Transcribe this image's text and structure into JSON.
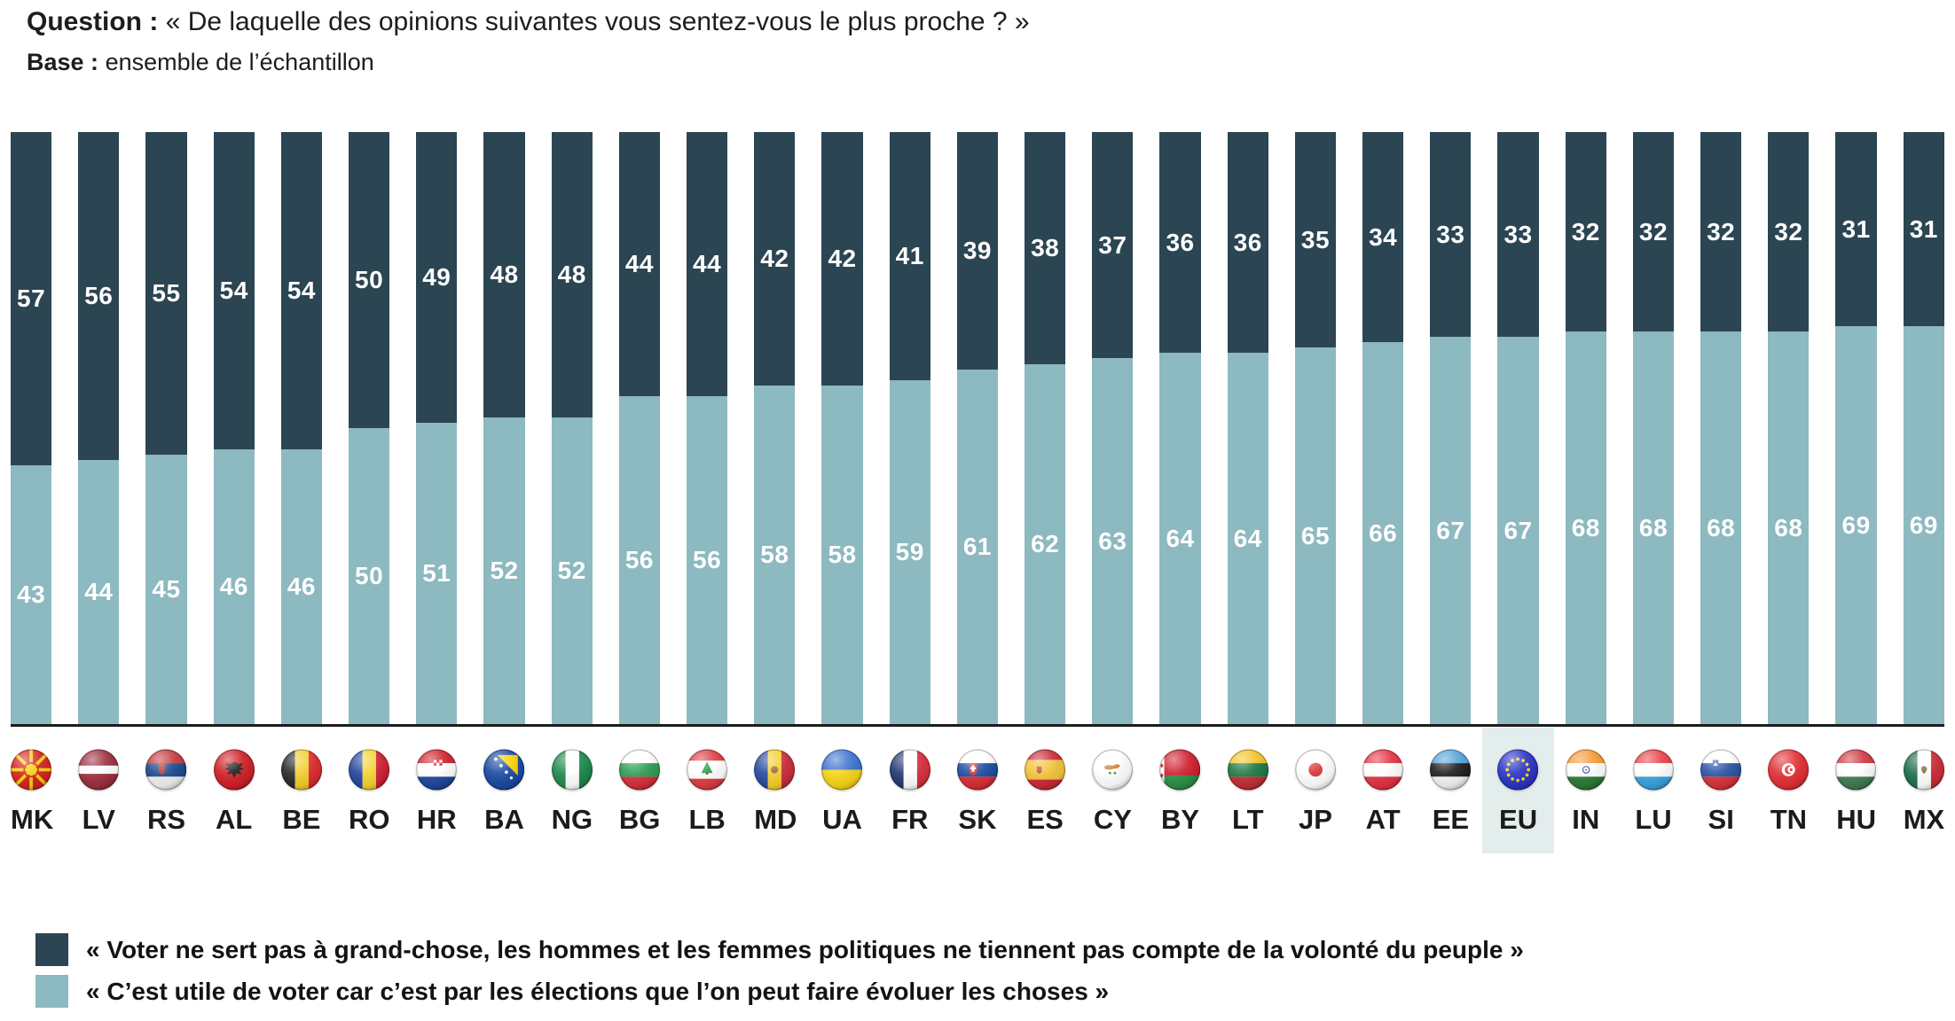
{
  "header": {
    "question_label": "Question :",
    "question_text": "« De laquelle des opinions suivantes vous sentez-vous le plus proche ? »",
    "base_label": "Base :",
    "base_text": "ensemble de l’échantillon"
  },
  "chart_data": {
    "type": "bar",
    "stacked": true,
    "unit": "%",
    "orientation": "vertical",
    "ylim": [
      0,
      100
    ],
    "grid": false,
    "legend_position": "bottom",
    "categories": [
      "MK",
      "LV",
      "RS",
      "AL",
      "BE",
      "RO",
      "HR",
      "BA",
      "NG",
      "BG",
      "LB",
      "MD",
      "UA",
      "FR",
      "SK",
      "ES",
      "CY",
      "BY",
      "LT",
      "JP",
      "AT",
      "EE",
      "EU",
      "IN",
      "LU",
      "SI",
      "TN",
      "HU",
      "MX"
    ],
    "series": [
      {
        "name": "« Voter ne sert pas à grand-chose, les hommes et les femmes politiques ne tiennent pas compte de la volonté du peuple »",
        "color": "#2b4552",
        "values": [
          57,
          56,
          55,
          54,
          54,
          50,
          49,
          48,
          48,
          44,
          44,
          42,
          42,
          41,
          39,
          38,
          37,
          36,
          36,
          35,
          34,
          33,
          33,
          32,
          32,
          32,
          32,
          31,
          31
        ]
      },
      {
        "name": "« C’est utile de voter car c’est par les élections que l’on peut faire évoluer les choses »",
        "color": "#8db9c0",
        "values": [
          43,
          44,
          45,
          46,
          46,
          50,
          51,
          52,
          52,
          56,
          56,
          58,
          58,
          59,
          61,
          62,
          63,
          64,
          64,
          65,
          66,
          67,
          67,
          68,
          68,
          68,
          68,
          69,
          69
        ]
      }
    ],
    "highlighted_category": "EU",
    "highlight_color": "#e3edec",
    "axis_line_color": "#1c1c1c",
    "value_label_color": "#ffffff"
  }
}
